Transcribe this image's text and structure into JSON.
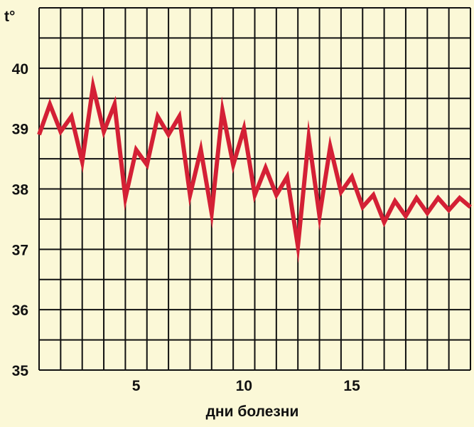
{
  "chart_data": {
    "type": "line",
    "ylabel": "t°",
    "xlabel": "дни болезни",
    "ylim": [
      35,
      41
    ],
    "xlim": [
      0,
      20
    ],
    "x_ticks": [
      5,
      10,
      15
    ],
    "y_ticks": [
      35,
      36,
      37,
      38,
      39,
      40
    ],
    "grid": true,
    "colors": {
      "background": "#fbf8d7",
      "grid": "#111111",
      "line": "#d42035"
    },
    "series": [
      {
        "x": [
          0,
          0.5,
          1,
          1.5,
          2,
          2.5,
          3,
          3.5,
          4,
          4.5,
          5,
          5.5,
          6,
          6.5,
          7,
          7.5,
          8,
          8.5,
          9,
          9.5,
          10,
          10.5,
          11,
          11.5,
          12,
          12.5,
          13,
          13.5,
          14,
          14.5,
          15,
          15.5,
          16,
          16.5,
          17,
          17.5,
          18,
          18.5,
          19,
          19.5,
          20
        ],
        "values": [
          38.9,
          39.4,
          38.95,
          39.2,
          38.45,
          39.7,
          38.95,
          39.4,
          37.85,
          38.65,
          38.4,
          39.2,
          38.9,
          39.2,
          37.9,
          38.65,
          37.6,
          39.3,
          38.4,
          39.0,
          37.9,
          38.35,
          37.9,
          38.2,
          37.05,
          38.85,
          37.55,
          38.7,
          37.95,
          38.2,
          37.7,
          37.9,
          37.45,
          37.8,
          37.55,
          37.85,
          37.6,
          37.85,
          37.65,
          37.85,
          37.7
        ]
      }
    ]
  }
}
